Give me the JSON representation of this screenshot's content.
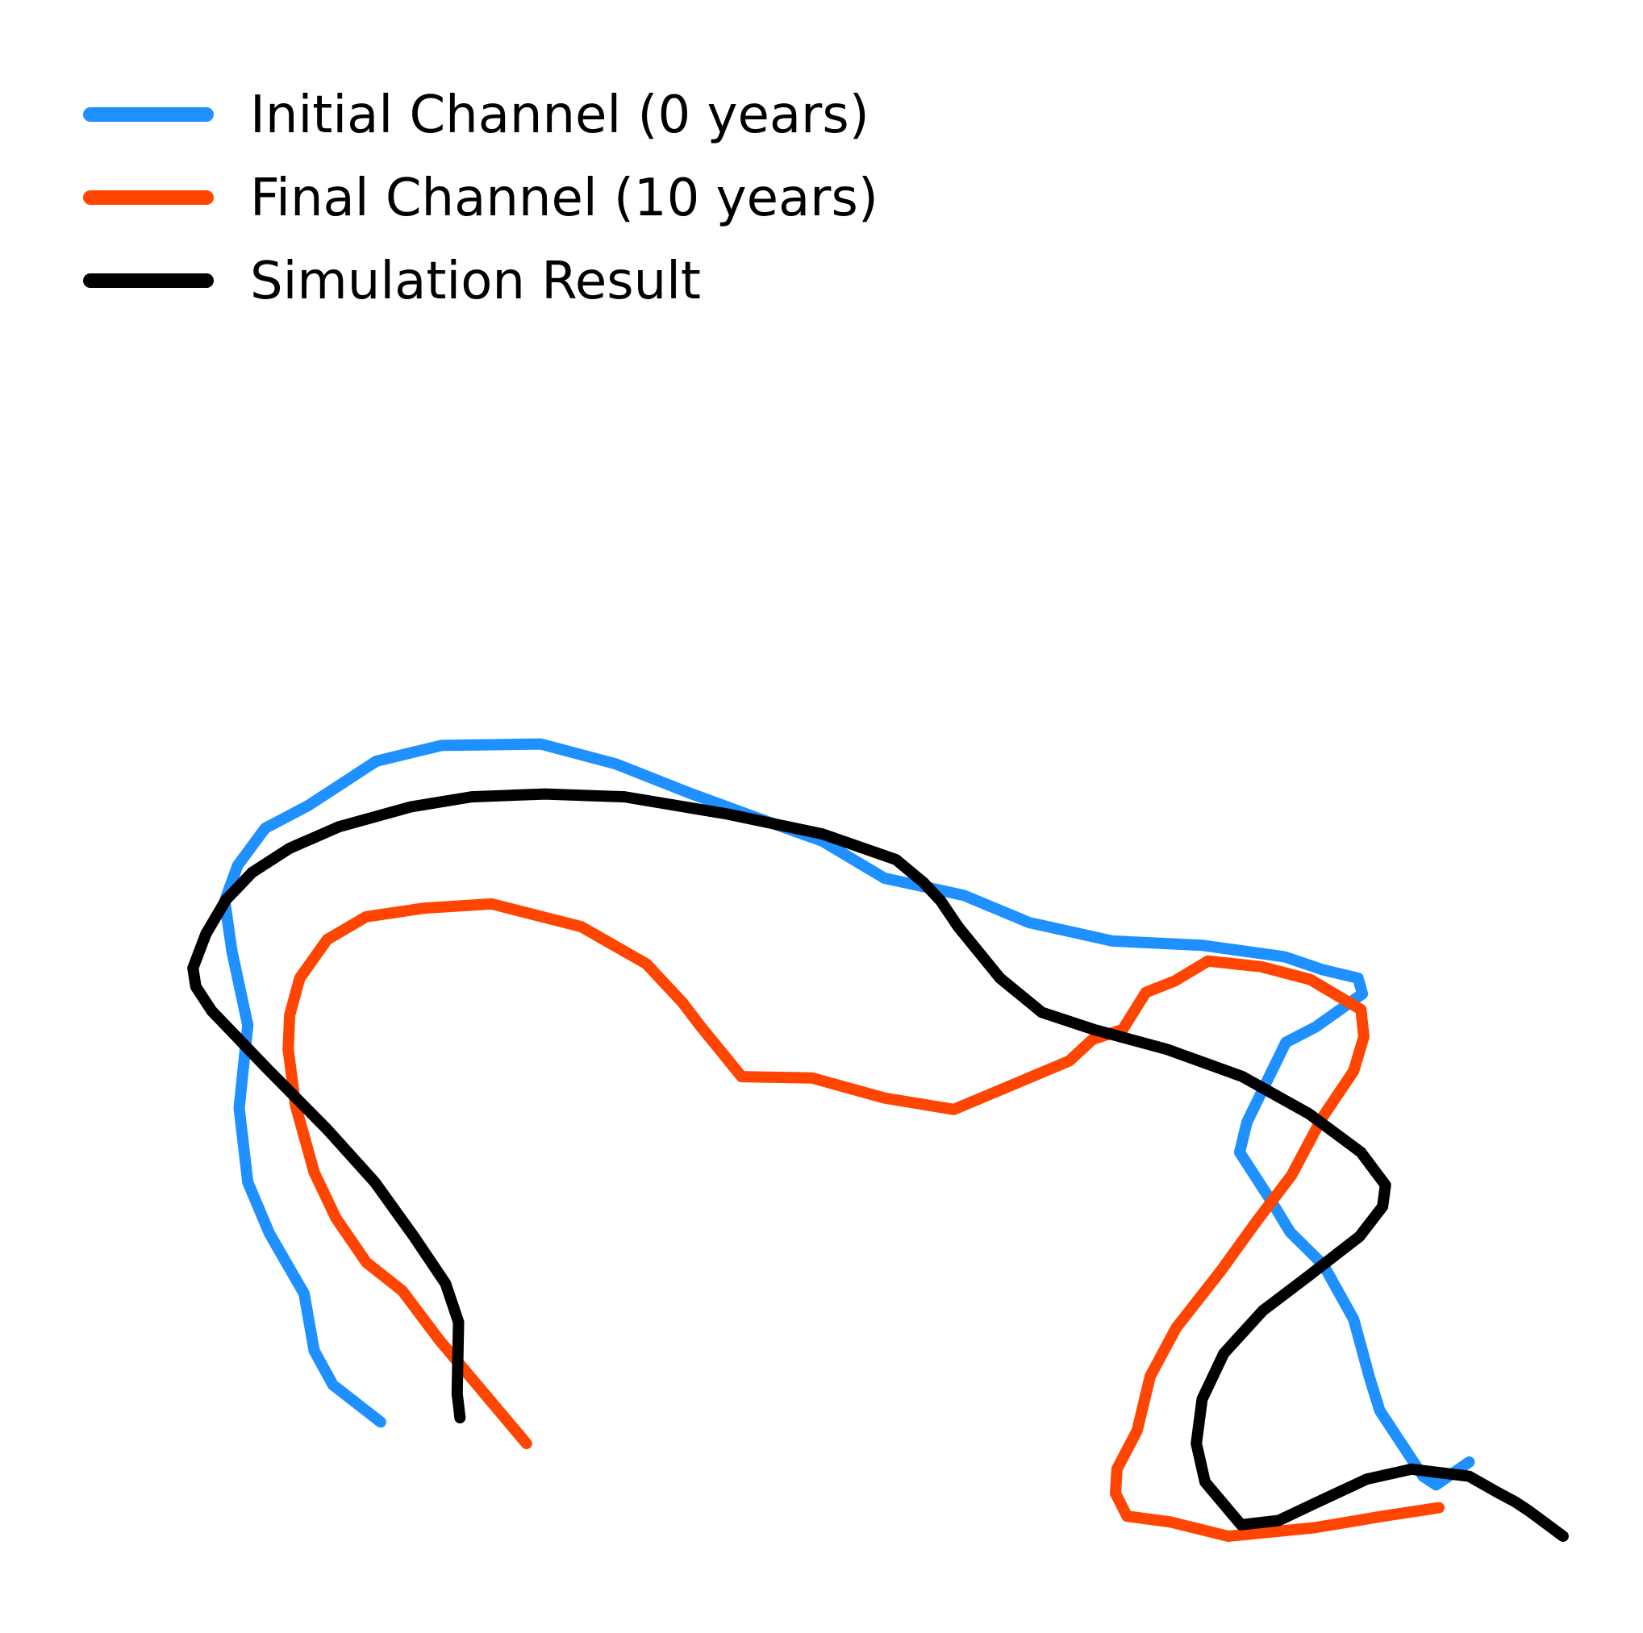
{
  "chart_data": {
    "type": "line",
    "title": "",
    "xlabel": "",
    "ylabel": "",
    "axes_visible": false,
    "grid": false,
    "xlim": [
      0,
      1000
    ],
    "ylim": [
      0,
      1000
    ],
    "legend": {
      "position": "top-left",
      "entries": [
        {
          "label": "Initial Channel (0 years)",
          "color": "#1e90ff"
        },
        {
          "label": "Final Channel (10 years)",
          "color": "#ff4500"
        },
        {
          "label": "Simulation Result",
          "color": "#000000"
        }
      ]
    },
    "series": [
      {
        "name": "Initial Channel (0 years)",
        "color": "#1e90ff",
        "points": [
          [
            191,
            80
          ],
          [
            158,
            106
          ],
          [
            145,
            130
          ],
          [
            138,
            170
          ],
          [
            114,
            212
          ],
          [
            99,
            248
          ],
          [
            93,
            300
          ],
          [
            99,
            358
          ],
          [
            88,
            410
          ],
          [
            83,
            445
          ],
          [
            92,
            470
          ],
          [
            111,
            496
          ],
          [
            141,
            512
          ],
          [
            188,
            543
          ],
          [
            233,
            554
          ],
          [
            302,
            555
          ],
          [
            354,
            541
          ],
          [
            404,
            521
          ],
          [
            447,
            505
          ],
          [
            497,
            487
          ],
          [
            540,
            461
          ],
          [
            595,
            449
          ],
          [
            640,
            430
          ],
          [
            698,
            417
          ],
          [
            760,
            414
          ],
          [
            817,
            406
          ],
          [
            843,
            397
          ],
          [
            868,
            391
          ],
          [
            871,
            380
          ],
          [
            839,
            357
          ],
          [
            818,
            346
          ],
          [
            791,
            290
          ],
          [
            786,
            269
          ],
          [
            809,
            233
          ],
          [
            821,
            213
          ],
          [
            844,
            190
          ],
          [
            865,
            152
          ],
          [
            876,
            111
          ],
          [
            883,
            88
          ],
          [
            913,
            42
          ],
          [
            922,
            36
          ],
          [
            945,
            52
          ]
        ]
      },
      {
        "name": "Final Channel (10 years)",
        "color": "#ff4500",
        "points": [
          [
            292,
            65
          ],
          [
            262,
            101
          ],
          [
            232,
            137
          ],
          [
            206,
            172
          ],
          [
            181,
            192
          ],
          [
            160,
            223
          ],
          [
            145,
            255
          ],
          [
            132,
            302
          ],
          [
            127,
            341
          ],
          [
            128,
            365
          ],
          [
            135,
            391
          ],
          [
            154,
            418
          ],
          [
            181,
            434
          ],
          [
            221,
            440
          ],
          [
            268,
            443
          ],
          [
            330,
            427
          ],
          [
            375,
            401
          ],
          [
            400,
            374
          ],
          [
            412,
            358
          ],
          [
            441,
            322
          ],
          [
            490,
            321
          ],
          [
            540,
            307
          ],
          [
            588,
            299
          ],
          [
            635,
            319
          ],
          [
            668,
            333
          ],
          [
            684,
            348
          ],
          [
            705,
            355
          ],
          [
            721,
            381
          ],
          [
            741,
            389
          ],
          [
            764,
            403
          ],
          [
            801,
            399
          ],
          [
            835,
            390
          ],
          [
            870,
            369
          ],
          [
            872,
            350
          ],
          [
            865,
            326
          ],
          [
            843,
            293
          ],
          [
            822,
            253
          ],
          [
            798,
            221
          ],
          [
            773,
            186
          ],
          [
            742,
            146
          ],
          [
            724,
            112
          ],
          [
            715,
            74
          ],
          [
            701,
            47
          ],
          [
            700,
            30
          ],
          [
            708,
            14
          ],
          [
            738,
            10
          ],
          [
            778,
            0
          ],
          [
            838,
            6
          ],
          [
            885,
            14
          ],
          [
            924,
            20
          ]
        ]
      },
      {
        "name": "Simulation Result",
        "color": "#000000",
        "points": [
          [
            246,
            83
          ],
          [
            244,
            100
          ],
          [
            245,
            150
          ],
          [
            236,
            177
          ],
          [
            214,
            210
          ],
          [
            187,
            248
          ],
          [
            154,
            285
          ],
          [
            112,
            328
          ],
          [
            74,
            368
          ],
          [
            63,
            385
          ],
          [
            61,
            398
          ],
          [
            70,
            422
          ],
          [
            84,
            446
          ],
          [
            102,
            465
          ],
          [
            128,
            482
          ],
          [
            162,
            497
          ],
          [
            212,
            511
          ],
          [
            254,
            518
          ],
          [
            305,
            520
          ],
          [
            360,
            518
          ],
          [
            431,
            506
          ],
          [
            497,
            492
          ],
          [
            548,
            474
          ],
          [
            567,
            458
          ],
          [
            579,
            445
          ],
          [
            591,
            427
          ],
          [
            620,
            391
          ],
          [
            649,
            367
          ],
          [
            685,
            355
          ],
          [
            736,
            341
          ],
          [
            788,
            322
          ],
          [
            834,
            296
          ],
          [
            870,
            269
          ],
          [
            887,
            246
          ],
          [
            885,
            231
          ],
          [
            869,
            210
          ],
          [
            832,
            181
          ],
          [
            802,
            158
          ],
          [
            775,
            128
          ],
          [
            760,
            96
          ],
          [
            756,
            65
          ],
          [
            762,
            38
          ],
          [
            787,
            8
          ],
          [
            813,
            11
          ],
          [
            838,
            23
          ],
          [
            874,
            40
          ],
          [
            905,
            47
          ],
          [
            945,
            42
          ],
          [
            964,
            31
          ],
          [
            977,
            24
          ],
          [
            986,
            18
          ],
          [
            1010,
            0
          ]
        ]
      }
    ]
  }
}
